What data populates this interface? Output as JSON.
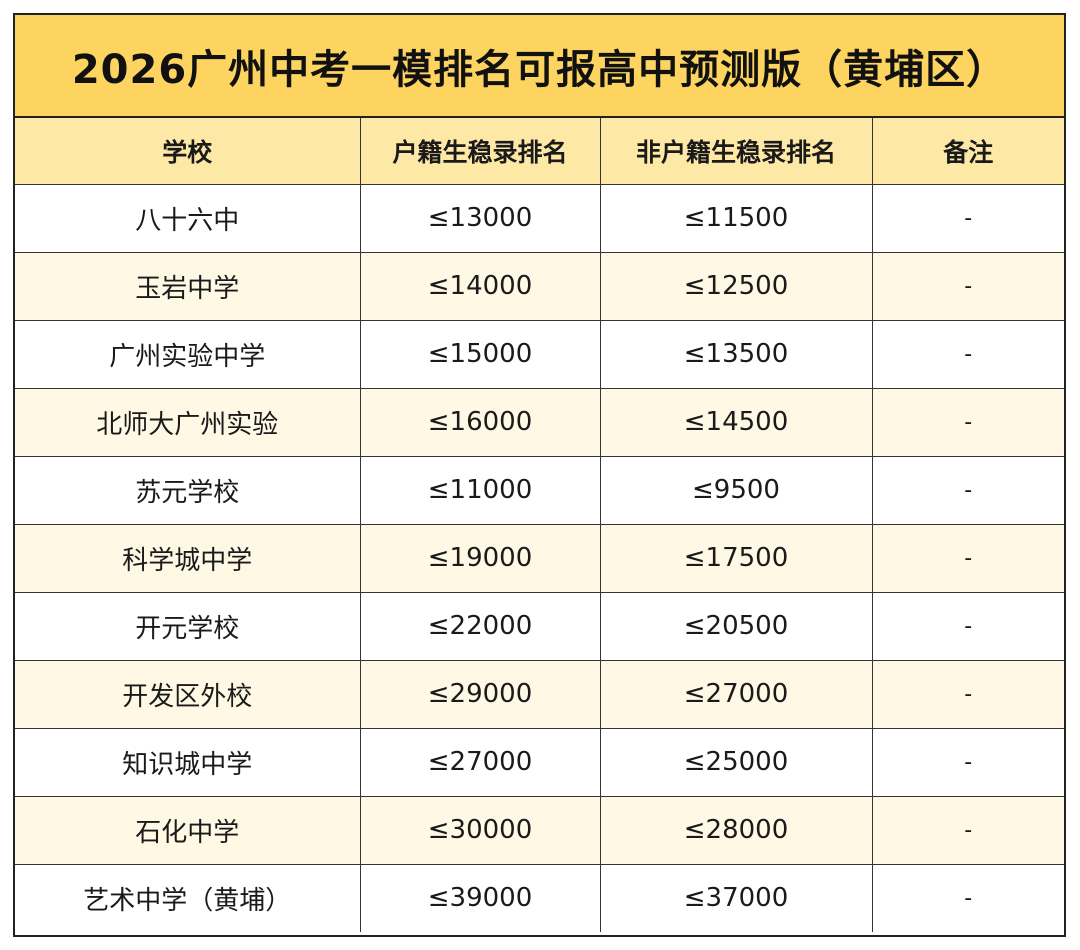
{
  "title": "2026广州中考一模排名可报高中预测版（黄埔区）",
  "headers": {
    "school": "学校",
    "local_rank": "户籍生稳录排名",
    "nonlocal_rank": "非户籍生稳录排名",
    "note": "备注"
  },
  "rows": [
    {
      "school": "八十六中",
      "local": "≤13000",
      "nonlocal": "≤11500",
      "note": "-"
    },
    {
      "school": "玉岩中学",
      "local": "≤14000",
      "nonlocal": "≤12500",
      "note": "-"
    },
    {
      "school": "广州实验中学",
      "local": "≤15000",
      "nonlocal": "≤13500",
      "note": "-"
    },
    {
      "school": "北师大广州实验",
      "local": "≤16000",
      "nonlocal": "≤14500",
      "note": "-"
    },
    {
      "school": "苏元学校",
      "local": "≤11000",
      "nonlocal": "≤9500",
      "note": "-"
    },
    {
      "school": "科学城中学",
      "local": "≤19000",
      "nonlocal": "≤17500",
      "note": "-"
    },
    {
      "school": "开元学校",
      "local": "≤22000",
      "nonlocal": "≤20500",
      "note": "-"
    },
    {
      "school": "开发区外校",
      "local": "≤29000",
      "nonlocal": "≤27000",
      "note": "-"
    },
    {
      "school": "知识城中学",
      "local": "≤27000",
      "nonlocal": "≤25000",
      "note": "-"
    },
    {
      "school": "石化中学",
      "local": "≤30000",
      "nonlocal": "≤28000",
      "note": "-"
    },
    {
      "school": "艺术中学（黄埔）",
      "local": "≤39000",
      "nonlocal": "≤37000",
      "note": "-"
    }
  ],
  "colors": {
    "title_bg": "#fdd45f",
    "header_bg": "#fde8a6",
    "stripe_bg": "#fff8e4"
  }
}
